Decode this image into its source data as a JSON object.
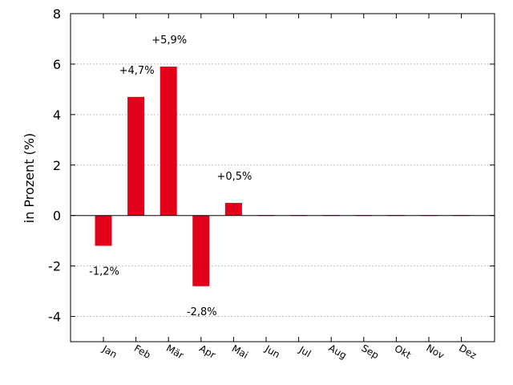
{
  "chart_data": {
    "type": "bar",
    "ylabel": "in Prozent (%)",
    "categories": [
      "Jan",
      "Feb",
      "Mär",
      "Apr",
      "Mai",
      "Jun",
      "Jul",
      "Aug",
      "Sep",
      "Okt",
      "Nov",
      "Dez"
    ],
    "values": [
      -1.2,
      4.7,
      5.9,
      -2.8,
      0.5,
      0,
      0,
      0,
      0,
      0,
      0,
      0
    ],
    "data_labels": [
      "-1,2%",
      "+4,7%",
      "+5,9%",
      "-2,8%",
      "+0,5%",
      "",
      "",
      "",
      "",
      "",
      "",
      ""
    ],
    "ylim": [
      -5,
      8
    ],
    "yticks": [
      8,
      6,
      4,
      2,
      0,
      -2,
      -4
    ],
    "grid": true,
    "bar_color": "#e2001a",
    "zero_line_color": "#000000",
    "grid_color": "#aaaaaa"
  }
}
